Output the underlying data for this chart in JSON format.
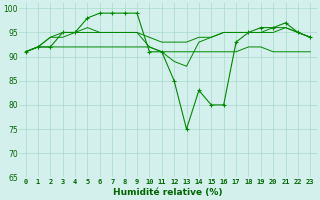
{
  "xlabel": "Humidité relative (%)",
  "background_color": "#d4f0ec",
  "grid_color": "#aad8cc",
  "line_color": "#008800",
  "marker": "+",
  "xlim": [
    -0.5,
    23.5
  ],
  "ylim": [
    65,
    101
  ],
  "yticks": [
    65,
    70,
    75,
    80,
    85,
    90,
    95,
    100
  ],
  "xticks": [
    0,
    1,
    2,
    3,
    4,
    5,
    6,
    7,
    8,
    9,
    10,
    11,
    12,
    13,
    14,
    15,
    16,
    17,
    18,
    19,
    20,
    21,
    22,
    23
  ],
  "series_with_markers": [
    91,
    92,
    92,
    95,
    95,
    98,
    99,
    99,
    99,
    99,
    91,
    91,
    85,
    75,
    83,
    80,
    80,
    93,
    95,
    96,
    96,
    97,
    95,
    94
  ],
  "series_plain": [
    [
      91,
      92,
      94,
      95,
      95,
      96,
      95,
      95,
      95,
      95,
      92,
      91,
      89,
      88,
      93,
      94,
      95,
      95,
      95,
      95,
      96,
      96,
      95,
      94
    ],
    [
      91,
      92,
      94,
      94,
      95,
      95,
      95,
      95,
      95,
      95,
      94,
      93,
      93,
      93,
      94,
      94,
      95,
      95,
      95,
      95,
      95,
      96,
      95,
      94
    ],
    [
      91,
      92,
      92,
      92,
      92,
      92,
      92,
      92,
      92,
      92,
      92,
      91,
      91,
      91,
      91,
      91,
      91,
      91,
      92,
      92,
      91,
      91,
      91,
      91
    ]
  ]
}
